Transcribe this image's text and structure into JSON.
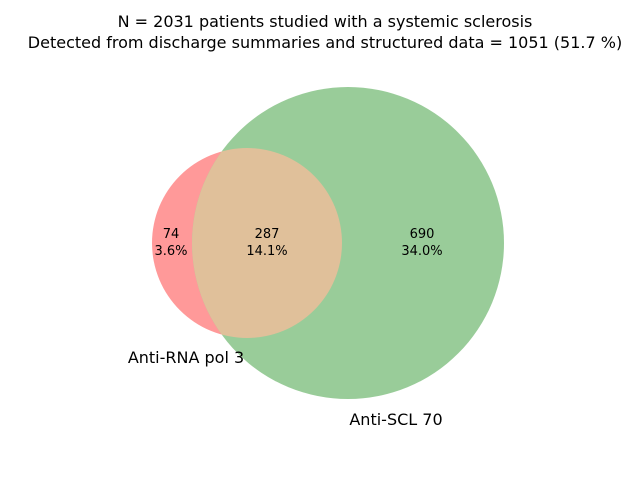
{
  "chart_data": {
    "type": "venn",
    "title_lines": [
      "N = 2031 patients studied with a systemic sclerosis",
      "Detected from discharge summaries and structured data = 1051 (51.7 %)"
    ],
    "sets": [
      {
        "name": "Anti-RNA pol 3",
        "color": "#ff9999"
      },
      {
        "name": "Anti-SCL 70",
        "color": "#99cc99"
      }
    ],
    "intersection_color": "#e0c09a",
    "regions": [
      {
        "sets": [
          "Anti-RNA pol 3"
        ],
        "count": "74",
        "percent": "3.6%"
      },
      {
        "sets": [
          "Anti-RNA pol 3",
          "Anti-SCL 70"
        ],
        "count": "287",
        "percent": "14.1%"
      },
      {
        "sets": [
          "Anti-SCL 70"
        ],
        "count": "690",
        "percent": "34.0%"
      }
    ]
  }
}
